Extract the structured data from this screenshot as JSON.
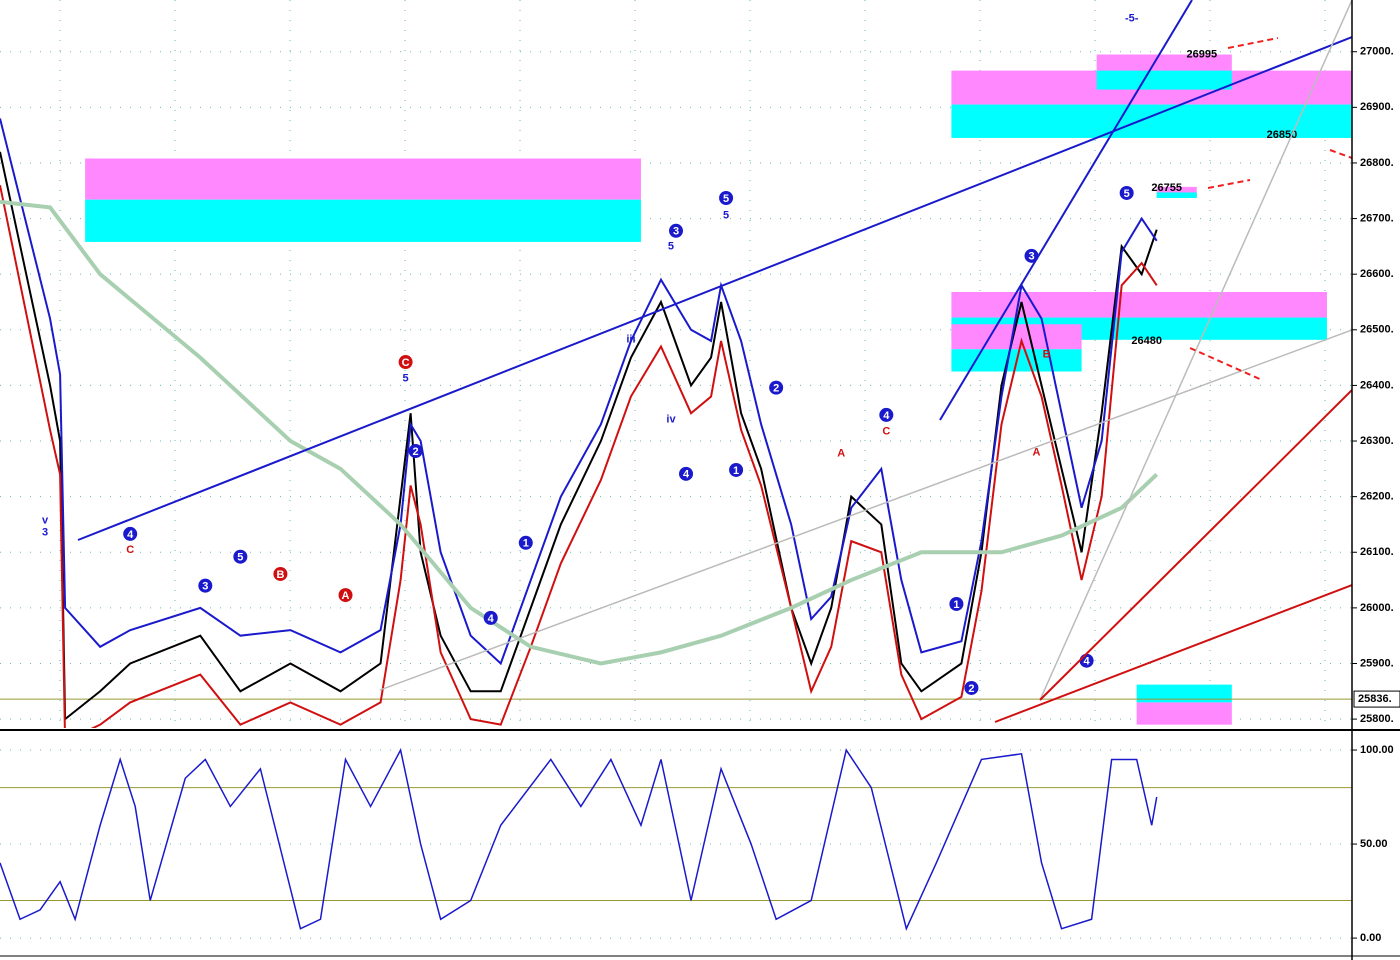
{
  "chart_data": [
    {
      "type": "price",
      "xlim": [
        0,
        270
      ],
      "ylim": [
        25784,
        27093
      ],
      "yticks": [
        {
          "value": 25800,
          "label": "25800."
        },
        {
          "value": 25900,
          "label": "25900."
        },
        {
          "value": 26000,
          "label": "26000."
        },
        {
          "value": 26100,
          "label": "26100."
        },
        {
          "value": 26200,
          "label": "26200."
        },
        {
          "value": 26300,
          "label": "26300."
        },
        {
          "value": 26400,
          "label": "26400."
        },
        {
          "value": 26500,
          "label": "26500."
        },
        {
          "value": 26600,
          "label": "26600."
        },
        {
          "value": 26700,
          "label": "26700."
        },
        {
          "value": 26800,
          "label": "26800."
        },
        {
          "value": 26900,
          "label": "26900."
        },
        {
          "value": 27000,
          "label": "27000."
        }
      ],
      "grid": true,
      "last_price": {
        "value": 25836,
        "label": "25836."
      },
      "x": [
        0,
        10,
        12,
        13,
        20,
        26,
        40,
        48,
        58,
        68,
        76,
        80,
        82,
        84,
        88,
        94,
        100,
        106,
        112,
        120,
        126,
        132,
        138,
        142,
        144,
        148,
        152,
        158,
        162,
        166,
        170,
        176,
        180,
        184,
        192,
        196,
        200,
        204,
        208,
        212,
        216,
        220,
        224,
        228,
        231
      ],
      "series": [
        {
          "name": "price",
          "color": "#000000",
          "values": [
            26820,
            26400,
            26300,
            25800,
            25850,
            25900,
            25950,
            25850,
            25900,
            25850,
            25900,
            26200,
            26350,
            26100,
            25950,
            25850,
            25850,
            26000,
            26150,
            26300,
            26450,
            26550,
            26400,
            26450,
            26550,
            26350,
            26250,
            26000,
            25900,
            26000,
            26200,
            26150,
            25900,
            25850,
            25900,
            26100,
            26400,
            26550,
            26400,
            26250,
            26100,
            26350,
            26650,
            26600,
            26680
          ]
        },
        {
          "name": "upper",
          "color": "#1a1acc",
          "values": [
            26880,
            26520,
            26420,
            26000,
            25930,
            25960,
            26000,
            25950,
            25960,
            25920,
            25960,
            26150,
            26330,
            26300,
            26100,
            25950,
            25900,
            26050,
            26200,
            26330,
            26480,
            26590,
            26500,
            26480,
            26580,
            26480,
            26330,
            26150,
            25980,
            26020,
            26180,
            26250,
            26050,
            25920,
            25940,
            26120,
            26380,
            26580,
            26520,
            26350,
            26180,
            26300,
            26640,
            26700,
            26660
          ]
        },
        {
          "name": "lower",
          "color": "#d01010",
          "values": [
            26760,
            26320,
            26240,
            25760,
            25790,
            25830,
            25880,
            25790,
            25830,
            25790,
            25830,
            26050,
            26220,
            26150,
            25920,
            25800,
            25790,
            25930,
            26080,
            26230,
            26380,
            26470,
            26350,
            26380,
            26480,
            26320,
            26220,
            26000,
            25850,
            25930,
            26120,
            26100,
            25880,
            25800,
            25840,
            26030,
            26330,
            26480,
            26380,
            26220,
            26050,
            26200,
            26580,
            26620,
            26580
          ]
        },
        {
          "name": "ma",
          "color": "#a8d0b0",
          "x": [
            0,
            10,
            20,
            40,
            58,
            68,
            80,
            94,
            106,
            120,
            132,
            144,
            158,
            170,
            184,
            200,
            212,
            224,
            231
          ],
          "values": [
            26730,
            26720,
            26600,
            26450,
            26300,
            26250,
            26150,
            26000,
            25930,
            25900,
            25920,
            25950,
            26000,
            26050,
            26100,
            26100,
            26130,
            26180,
            26240
          ]
        }
      ],
      "annotations": [
        {
          "text": "-5-",
          "x": 226,
          "y": 27060
        },
        {
          "text": "26995",
          "x": 240,
          "y": 26995
        },
        {
          "text": "26850",
          "x": 256,
          "y": 26850
        },
        {
          "text": "26755",
          "x": 233,
          "y": 26755
        },
        {
          "text": "26480",
          "x": 229,
          "y": 26480
        }
      ],
      "zones": [
        {
          "x0": 17,
          "x1": 128,
          "bands": [
            {
              "from": 26808,
              "to": 26734,
              "color": "#ff88ff"
            },
            {
              "from": 26734,
              "to": 26658,
              "color": "#00ffff"
            }
          ]
        },
        {
          "x0": 190,
          "x1": 270,
          "bands": [
            {
              "from": 26966,
              "to": 26905,
              "color": "#ff88ff"
            },
            {
              "from": 26905,
              "to": 26845,
              "color": "#00ffff"
            }
          ]
        },
        {
          "x0": 219,
          "x1": 246,
          "bands": [
            {
              "from": 26995,
              "to": 26966,
              "color": "#ff88ff"
            },
            {
              "from": 26966,
              "to": 26932,
              "color": "#00ffff"
            }
          ]
        },
        {
          "x0": 190,
          "x1": 265,
          "bands": [
            {
              "from": 26568,
              "to": 26522,
              "color": "#ff88ff"
            },
            {
              "from": 26522,
              "to": 26482,
              "color": "#00ffff"
            }
          ]
        },
        {
          "x0": 190,
          "x1": 216,
          "bands": [
            {
              "from": 26510,
              "to": 26465,
              "color": "#ff88ff"
            },
            {
              "from": 26465,
              "to": 26425,
              "color": "#00ffff"
            }
          ]
        },
        {
          "x0": 231,
          "x1": 239,
          "bands": [
            {
              "from": 26757,
              "to": 26737,
              "color": "#ff88ff"
            },
            {
              "from": 26747,
              "to": 26737,
              "color": "#00ffff"
            }
          ]
        },
        {
          "x0": 227,
          "x1": 246,
          "bands": [
            {
              "from": 25862,
              "to": 25830,
              "color": "#00ffff"
            },
            {
              "from": 25830,
              "to": 25790,
              "color": "#ff88ff"
            }
          ]
        }
      ],
      "wave_labels": [
        {
          "text": "4",
          "x": 26,
          "y": 26133,
          "color": "#1a1acc",
          "circled": true
        },
        {
          "text": "C",
          "x": 26,
          "y": 26106,
          "color": "#d01010",
          "circled": false
        },
        {
          "text": "3",
          "x": 41,
          "y": 26040,
          "color": "#1a1acc",
          "circled": true
        },
        {
          "text": "5",
          "x": 48,
          "y": 26092,
          "color": "#1a1acc",
          "circled": true
        },
        {
          "text": "B",
          "x": 56,
          "y": 26061,
          "color": "#d01010",
          "circled": true
        },
        {
          "text": "A",
          "x": 69,
          "y": 26023,
          "color": "#d01010",
          "circled": true
        },
        {
          "text": "C",
          "x": 81,
          "y": 26442,
          "color": "#d01010",
          "circled": true
        },
        {
          "text": "2",
          "x": 83,
          "y": 26282,
          "color": "#1a1acc",
          "circled": true
        },
        {
          "text": "4",
          "x": 98,
          "y": 25982,
          "color": "#1a1acc",
          "circled": true
        },
        {
          "text": "1",
          "x": 105,
          "y": 26117,
          "color": "#1a1acc",
          "circled": true
        },
        {
          "text": "3",
          "x": 135,
          "y": 26678,
          "color": "#1a1acc",
          "circled": true
        },
        {
          "text": "5",
          "x": 145,
          "y": 26737,
          "color": "#1a1acc",
          "circled": true
        },
        {
          "text": "4",
          "x": 137,
          "y": 26241,
          "color": "#1a1acc",
          "circled": true
        },
        {
          "text": "1",
          "x": 147,
          "y": 26248,
          "color": "#1a1acc",
          "circled": true
        },
        {
          "text": "2",
          "x": 155,
          "y": 26396,
          "color": "#1a1acc",
          "circled": true
        },
        {
          "text": "4",
          "x": 177,
          "y": 26347,
          "color": "#1a1acc",
          "circled": true
        },
        {
          "text": "1",
          "x": 191,
          "y": 26007,
          "color": "#1a1acc",
          "circled": true
        },
        {
          "text": "2",
          "x": 194,
          "y": 25856,
          "color": "#1a1acc",
          "circled": true
        },
        {
          "text": "3",
          "x": 206,
          "y": 26633,
          "color": "#1a1acc",
          "circled": true
        },
        {
          "text": "5",
          "x": 225,
          "y": 26746,
          "color": "#1a1acc",
          "circled": true
        },
        {
          "text": "4",
          "x": 217,
          "y": 25905,
          "color": "#1a1acc",
          "circled": true
        },
        {
          "text": "B",
          "x": 209,
          "y": 26457,
          "color": "#d01010",
          "circled": false
        },
        {
          "text": "A",
          "x": 207,
          "y": 26281,
          "color": "#d01010",
          "circled": false
        },
        {
          "text": "A",
          "x": 168,
          "y": 26279,
          "color": "#d01010",
          "circled": false
        },
        {
          "text": "C",
          "x": 177,
          "y": 26319,
          "color": "#d01010",
          "circled": false
        },
        {
          "text": "iii",
          "x": 126,
          "y": 26484,
          "color": "#1a1acc",
          "circled": false
        },
        {
          "text": "iv",
          "x": 134,
          "y": 26340,
          "color": "#1a1acc",
          "circled": false
        },
        {
          "text": "v",
          "x": 9,
          "y": 26159,
          "color": "#1a1acc",
          "circled": false
        },
        {
          "text": "3",
          "x": 9,
          "y": 26137,
          "color": "#1a1acc",
          "circled": false
        },
        {
          "text": "5",
          "x": 81,
          "y": 26414,
          "color": "#1a1acc",
          "circled": false
        },
        {
          "text": "5",
          "x": 145,
          "y": 26707,
          "color": "#1a1acc",
          "circled": false
        },
        {
          "text": "5",
          "x": 134,
          "y": 26651,
          "color": "#1a1acc",
          "circled": false
        }
      ]
    },
    {
      "type": "oscillator",
      "xlim": [
        0,
        270
      ],
      "ylim": [
        -9,
        108
      ],
      "yticks": [
        {
          "value": 100,
          "label": "100.00"
        },
        {
          "value": 50,
          "label": "50.00"
        },
        {
          "value": 0,
          "label": "0.00"
        }
      ],
      "levels": [
        80,
        20
      ],
      "x": [
        0,
        4,
        8,
        12,
        15,
        20,
        24,
        27,
        30,
        37,
        41,
        46,
        52,
        60,
        64,
        69,
        74,
        80,
        84,
        88,
        94,
        100,
        110,
        116,
        122,
        128,
        132,
        138,
        144,
        150,
        155,
        162,
        169,
        174,
        181,
        187,
        196,
        204,
        208,
        212,
        218,
        222,
        227,
        230,
        231
      ],
      "series": [
        {
          "name": "stoch",
          "color": "#1a1acc",
          "values": [
            40,
            10,
            15,
            30,
            10,
            60,
            95,
            70,
            20,
            85,
            95,
            70,
            90,
            5,
            10,
            95,
            70,
            100,
            50,
            10,
            20,
            60,
            95,
            70,
            95,
            60,
            95,
            20,
            90,
            50,
            10,
            20,
            100,
            80,
            5,
            40,
            95,
            98,
            40,
            5,
            10,
            95,
            95,
            60,
            75
          ]
        }
      ]
    }
  ]
}
